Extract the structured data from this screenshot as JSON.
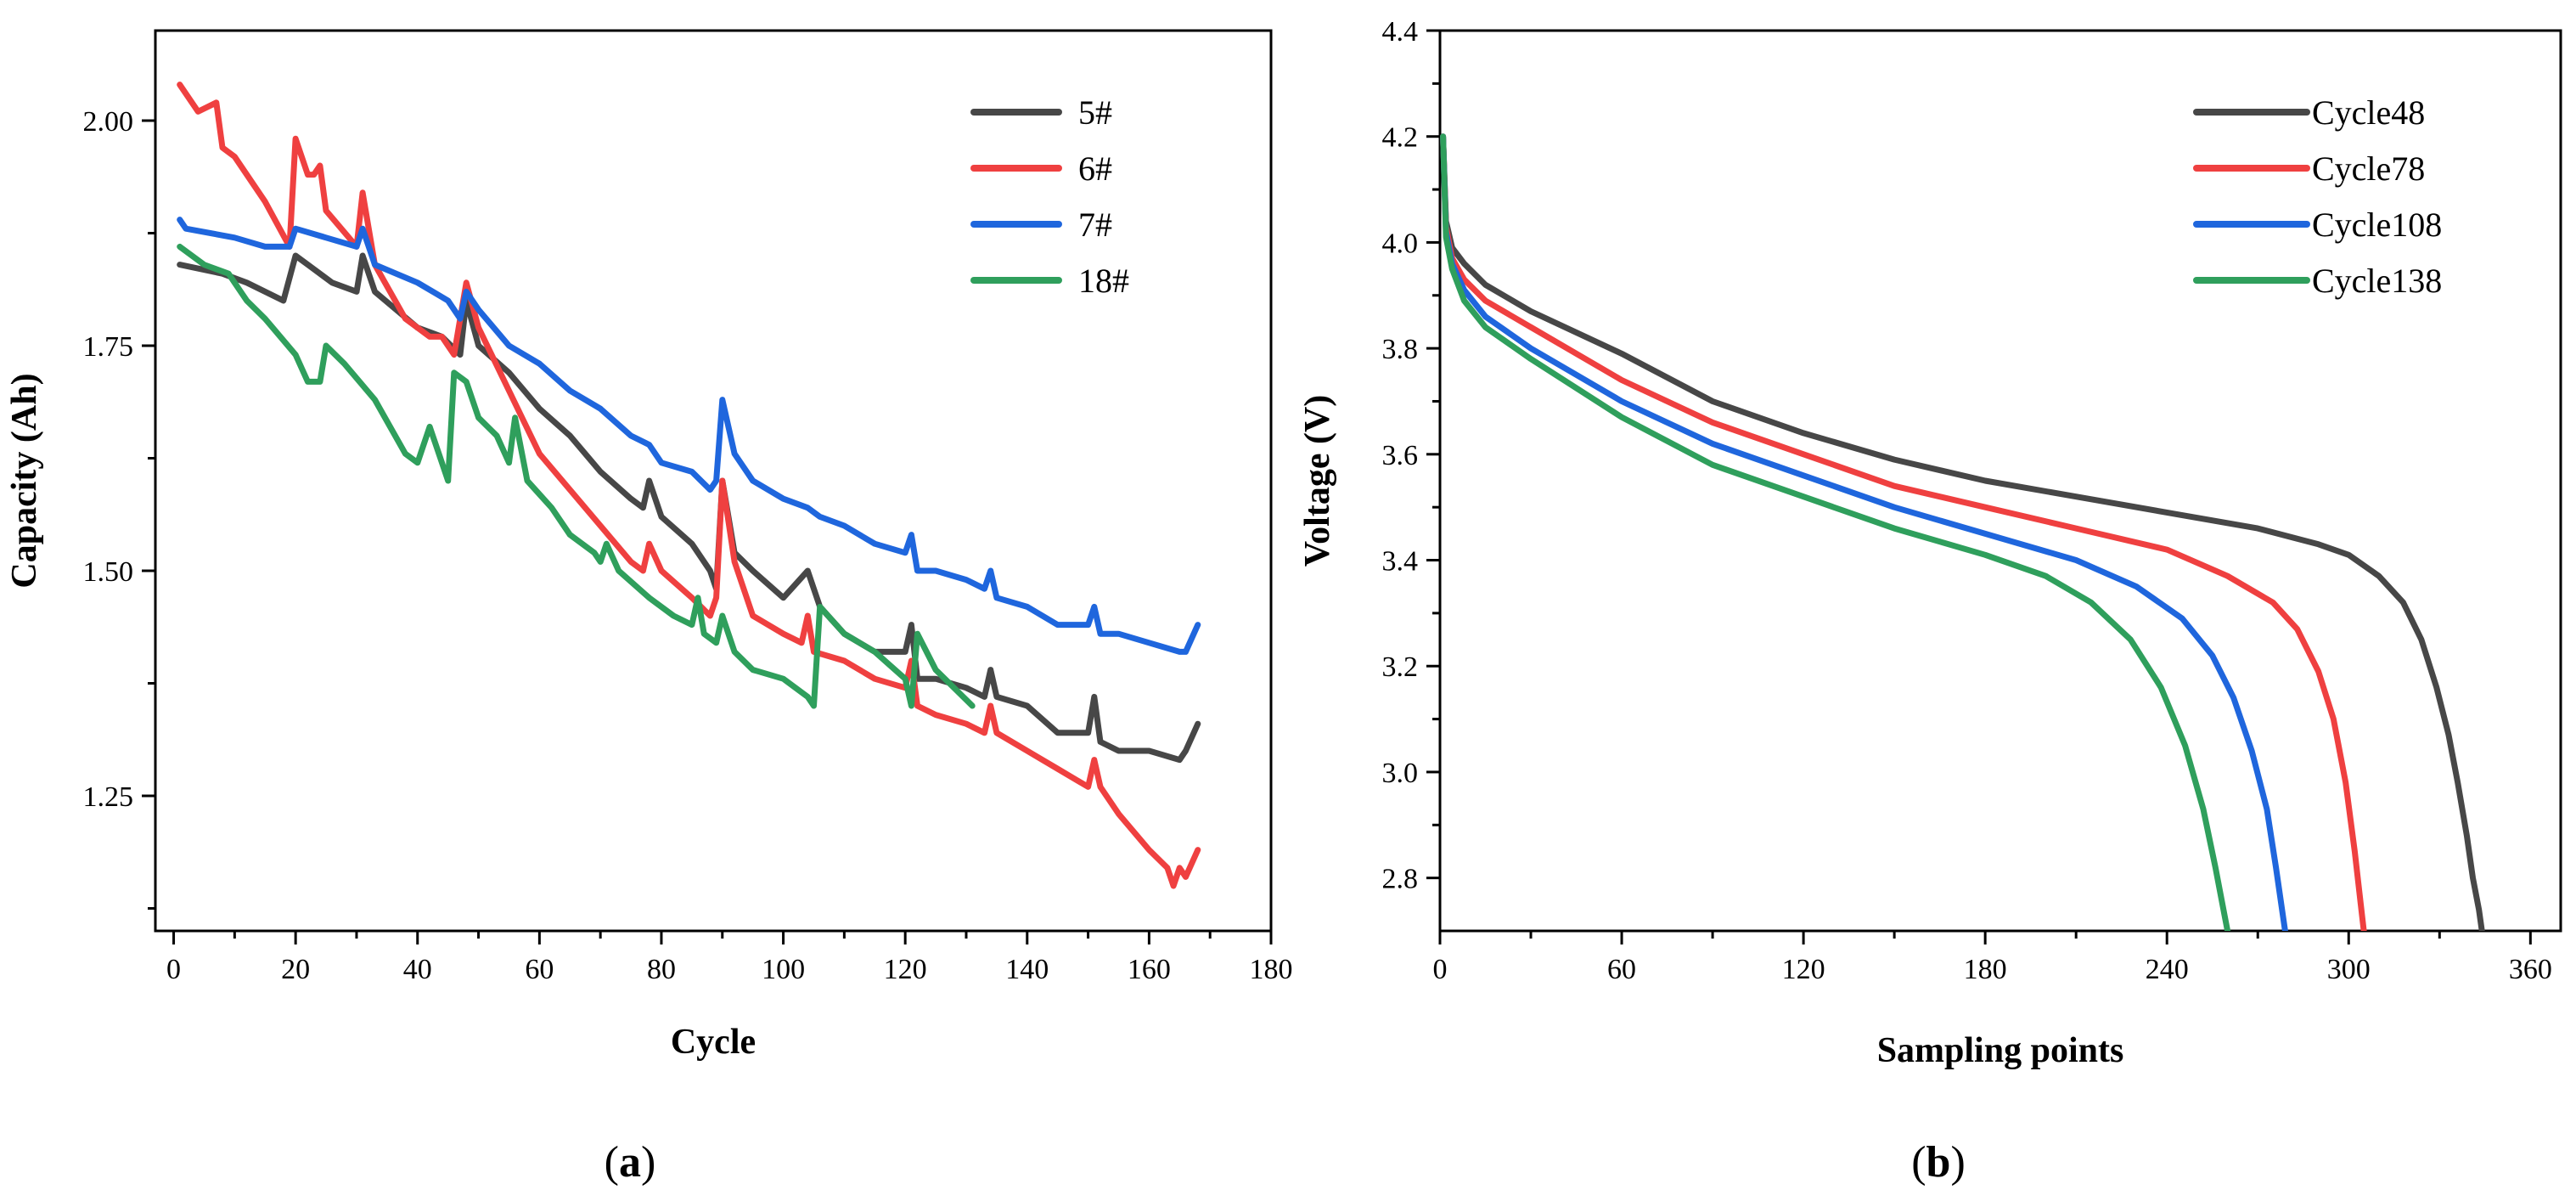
{
  "colors": {
    "black": "#474747",
    "red": "#ef4040",
    "blue": "#1f66dd",
    "green": "#2f9f5c"
  },
  "chart_data": [
    {
      "id": "a",
      "type": "line",
      "caption": {
        "open": "(",
        "letter": "a",
        "close": ")"
      },
      "xlabel": "Cycle",
      "ylabel": "Capacity (Ah)",
      "xlim": [
        -3,
        180
      ],
      "ylim": [
        1.1,
        2.1
      ],
      "xticks": [
        0,
        20,
        40,
        60,
        80,
        100,
        120,
        140,
        160,
        180
      ],
      "xtick_labels": [
        "0",
        "20",
        "40",
        "60",
        "80",
        "100",
        "120",
        "140",
        "160",
        "180"
      ],
      "yticks": [
        1.25,
        1.5,
        1.75,
        2.0
      ],
      "ytick_labels": [
        "1.25",
        "1.50",
        "1.75",
        "2.00"
      ],
      "yminor": [
        1.125,
        1.375,
        1.625,
        1.875
      ],
      "legend_position": "top-right",
      "series": [
        {
          "name": "5#",
          "color": "#474747",
          "x": [
            1,
            8,
            12,
            18,
            20,
            22,
            26,
            30,
            31,
            33,
            40,
            44,
            47,
            48,
            50,
            55,
            60,
            65,
            70,
            75,
            77,
            78,
            80,
            85,
            88,
            89,
            90,
            92,
            95,
            100,
            104,
            106,
            110,
            115,
            120,
            121,
            122,
            125,
            130,
            133,
            134,
            135,
            140,
            145,
            150,
            151,
            152,
            155,
            160,
            165,
            166,
            168
          ],
          "y": [
            1.84,
            1.83,
            1.82,
            1.8,
            1.85,
            1.84,
            1.82,
            1.81,
            1.85,
            1.81,
            1.77,
            1.76,
            1.74,
            1.8,
            1.75,
            1.72,
            1.68,
            1.65,
            1.61,
            1.58,
            1.57,
            1.6,
            1.56,
            1.53,
            1.5,
            1.48,
            1.6,
            1.52,
            1.5,
            1.47,
            1.5,
            1.46,
            1.43,
            1.41,
            1.41,
            1.44,
            1.38,
            1.38,
            1.37,
            1.36,
            1.39,
            1.36,
            1.35,
            1.32,
            1.32,
            1.36,
            1.31,
            1.3,
            1.3,
            1.29,
            1.3,
            1.33
          ]
        },
        {
          "name": "6#",
          "color": "#ef4040",
          "x": [
            1,
            4,
            7,
            8,
            10,
            15,
            19,
            20,
            22,
            23,
            24,
            25,
            30,
            31,
            33,
            38,
            42,
            44,
            46,
            48,
            50,
            55,
            60,
            65,
            70,
            75,
            77,
            78,
            80,
            85,
            88,
            89,
            90,
            92,
            95,
            100,
            103,
            104,
            105,
            110,
            115,
            120,
            121,
            122,
            125,
            130,
            133,
            134,
            135,
            140,
            145,
            150,
            151,
            152,
            155,
            160,
            163,
            164,
            165,
            166,
            168
          ],
          "y": [
            2.04,
            2.01,
            2.02,
            1.97,
            1.96,
            1.91,
            1.86,
            1.98,
            1.94,
            1.94,
            1.95,
            1.9,
            1.86,
            1.92,
            1.84,
            1.78,
            1.76,
            1.76,
            1.74,
            1.82,
            1.77,
            1.7,
            1.63,
            1.59,
            1.55,
            1.51,
            1.5,
            1.53,
            1.5,
            1.47,
            1.45,
            1.47,
            1.6,
            1.51,
            1.45,
            1.43,
            1.42,
            1.45,
            1.41,
            1.4,
            1.38,
            1.37,
            1.4,
            1.35,
            1.34,
            1.33,
            1.32,
            1.35,
            1.32,
            1.3,
            1.28,
            1.26,
            1.29,
            1.26,
            1.23,
            1.19,
            1.17,
            1.15,
            1.17,
            1.16,
            1.19
          ]
        },
        {
          "name": "7#",
          "color": "#1f66dd",
          "x": [
            1,
            2,
            10,
            15,
            19,
            20,
            25,
            30,
            31,
            33,
            40,
            45,
            47,
            48,
            50,
            55,
            60,
            65,
            70,
            75,
            78,
            80,
            85,
            88,
            89,
            90,
            92,
            95,
            100,
            104,
            106,
            110,
            115,
            120,
            121,
            122,
            125,
            130,
            133,
            134,
            135,
            140,
            145,
            150,
            151,
            152,
            155,
            160,
            165,
            166,
            168
          ],
          "y": [
            1.89,
            1.88,
            1.87,
            1.86,
            1.86,
            1.88,
            1.87,
            1.86,
            1.88,
            1.84,
            1.82,
            1.8,
            1.78,
            1.81,
            1.79,
            1.75,
            1.73,
            1.7,
            1.68,
            1.65,
            1.64,
            1.62,
            1.61,
            1.59,
            1.6,
            1.69,
            1.63,
            1.6,
            1.58,
            1.57,
            1.56,
            1.55,
            1.53,
            1.52,
            1.54,
            1.5,
            1.5,
            1.49,
            1.48,
            1.5,
            1.47,
            1.46,
            1.44,
            1.44,
            1.46,
            1.43,
            1.43,
            1.42,
            1.41,
            1.41,
            1.44
          ]
        },
        {
          "name": "18#",
          "color": "#2f9f5c",
          "x": [
            1,
            5,
            9,
            10,
            12,
            15,
            20,
            22,
            24,
            25,
            28,
            33,
            38,
            40,
            42,
            44,
            45,
            46,
            48,
            50,
            53,
            55,
            56,
            58,
            62,
            65,
            69,
            70,
            71,
            73,
            78,
            82,
            85,
            86,
            87,
            89,
            90,
            92,
            95,
            100,
            104,
            105,
            106,
            110,
            115,
            120,
            121,
            122,
            125,
            128,
            131
          ],
          "y": [
            1.86,
            1.84,
            1.83,
            1.82,
            1.8,
            1.78,
            1.74,
            1.71,
            1.71,
            1.75,
            1.73,
            1.69,
            1.63,
            1.62,
            1.66,
            1.62,
            1.6,
            1.72,
            1.71,
            1.67,
            1.65,
            1.62,
            1.67,
            1.6,
            1.57,
            1.54,
            1.52,
            1.51,
            1.53,
            1.5,
            1.47,
            1.45,
            1.44,
            1.47,
            1.43,
            1.42,
            1.45,
            1.41,
            1.39,
            1.38,
            1.36,
            1.35,
            1.46,
            1.43,
            1.41,
            1.38,
            1.35,
            1.43,
            1.39,
            1.37,
            1.35
          ]
        }
      ]
    },
    {
      "id": "b",
      "type": "line",
      "caption": {
        "open": "(",
        "letter": "b",
        "close": ")"
      },
      "xlabel": "Sampling points",
      "ylabel": "Voltage (V)",
      "xlim": [
        0,
        370
      ],
      "ylim": [
        2.7,
        4.4
      ],
      "xticks": [
        0,
        60,
        120,
        180,
        240,
        300,
        360
      ],
      "xtick_labels": [
        "0",
        "60",
        "120",
        "180",
        "240",
        "300",
        "360"
      ],
      "yticks": [
        2.8,
        3.0,
        3.2,
        3.4,
        3.6,
        3.8,
        4.0,
        4.2,
        4.4
      ],
      "ytick_labels": [
        "2.8",
        "3.0",
        "3.2",
        "3.4",
        "3.6",
        "3.8",
        "4.0",
        "4.2",
        "4.4"
      ],
      "yminor": [
        2.9,
        3.1,
        3.3,
        3.5,
        3.7,
        3.9,
        4.1,
        4.3
      ],
      "legend_position": "top-right",
      "series": [
        {
          "name": "Cycle48",
          "color": "#474747",
          "x": [
            1,
            2,
            4,
            8,
            15,
            30,
            60,
            90,
            120,
            150,
            180,
            210,
            240,
            270,
            290,
            300,
            310,
            318,
            324,
            329,
            333,
            336,
            339,
            341,
            343,
            344
          ],
          "y": [
            4.2,
            4.04,
            3.99,
            3.96,
            3.92,
            3.87,
            3.79,
            3.7,
            3.64,
            3.59,
            3.55,
            3.52,
            3.49,
            3.46,
            3.43,
            3.41,
            3.37,
            3.32,
            3.25,
            3.16,
            3.07,
            2.98,
            2.88,
            2.8,
            2.74,
            2.7
          ]
        },
        {
          "name": "Cycle78",
          "color": "#ef4040",
          "x": [
            1,
            2,
            4,
            8,
            15,
            30,
            60,
            90,
            120,
            150,
            180,
            210,
            240,
            260,
            275,
            283,
            290,
            295,
            299,
            302,
            304,
            305
          ],
          "y": [
            4.2,
            4.03,
            3.97,
            3.93,
            3.89,
            3.84,
            3.74,
            3.66,
            3.6,
            3.54,
            3.5,
            3.46,
            3.42,
            3.37,
            3.32,
            3.27,
            3.19,
            3.1,
            2.98,
            2.85,
            2.75,
            2.7
          ]
        },
        {
          "name": "Cycle108",
          "color": "#1f66dd",
          "x": [
            1,
            2,
            4,
            8,
            15,
            30,
            60,
            90,
            120,
            150,
            180,
            210,
            230,
            245,
            255,
            262,
            268,
            273,
            276,
            278,
            279
          ],
          "y": [
            4.2,
            4.02,
            3.96,
            3.91,
            3.86,
            3.8,
            3.7,
            3.62,
            3.56,
            3.5,
            3.45,
            3.4,
            3.35,
            3.29,
            3.22,
            3.14,
            3.04,
            2.93,
            2.82,
            2.74,
            2.7
          ]
        },
        {
          "name": "Cycle138",
          "color": "#2f9f5c",
          "x": [
            1,
            2,
            4,
            8,
            15,
            30,
            60,
            90,
            120,
            150,
            180,
            200,
            215,
            228,
            238,
            246,
            252,
            256,
            259,
            260
          ],
          "y": [
            4.2,
            4.01,
            3.95,
            3.89,
            3.84,
            3.78,
            3.67,
            3.58,
            3.52,
            3.46,
            3.41,
            3.37,
            3.32,
            3.25,
            3.16,
            3.05,
            2.93,
            2.82,
            2.73,
            2.7
          ]
        }
      ]
    }
  ]
}
